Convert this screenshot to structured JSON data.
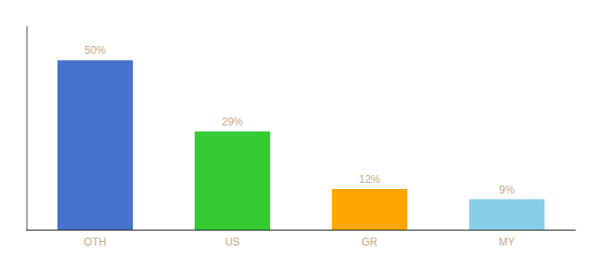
{
  "chart_data": {
    "type": "bar",
    "categories": [
      "OTH",
      "US",
      "GR",
      "MY"
    ],
    "values": [
      50,
      29,
      12,
      9
    ],
    "value_labels": [
      "50%",
      "29%",
      "12%",
      "9%"
    ],
    "colors": [
      "#4472CC",
      "#33CC33",
      "#FFA500",
      "#87CEEB"
    ],
    "ylim": [
      0,
      60
    ],
    "data_labels": true,
    "tick_labels": "x",
    "grid": false
  }
}
